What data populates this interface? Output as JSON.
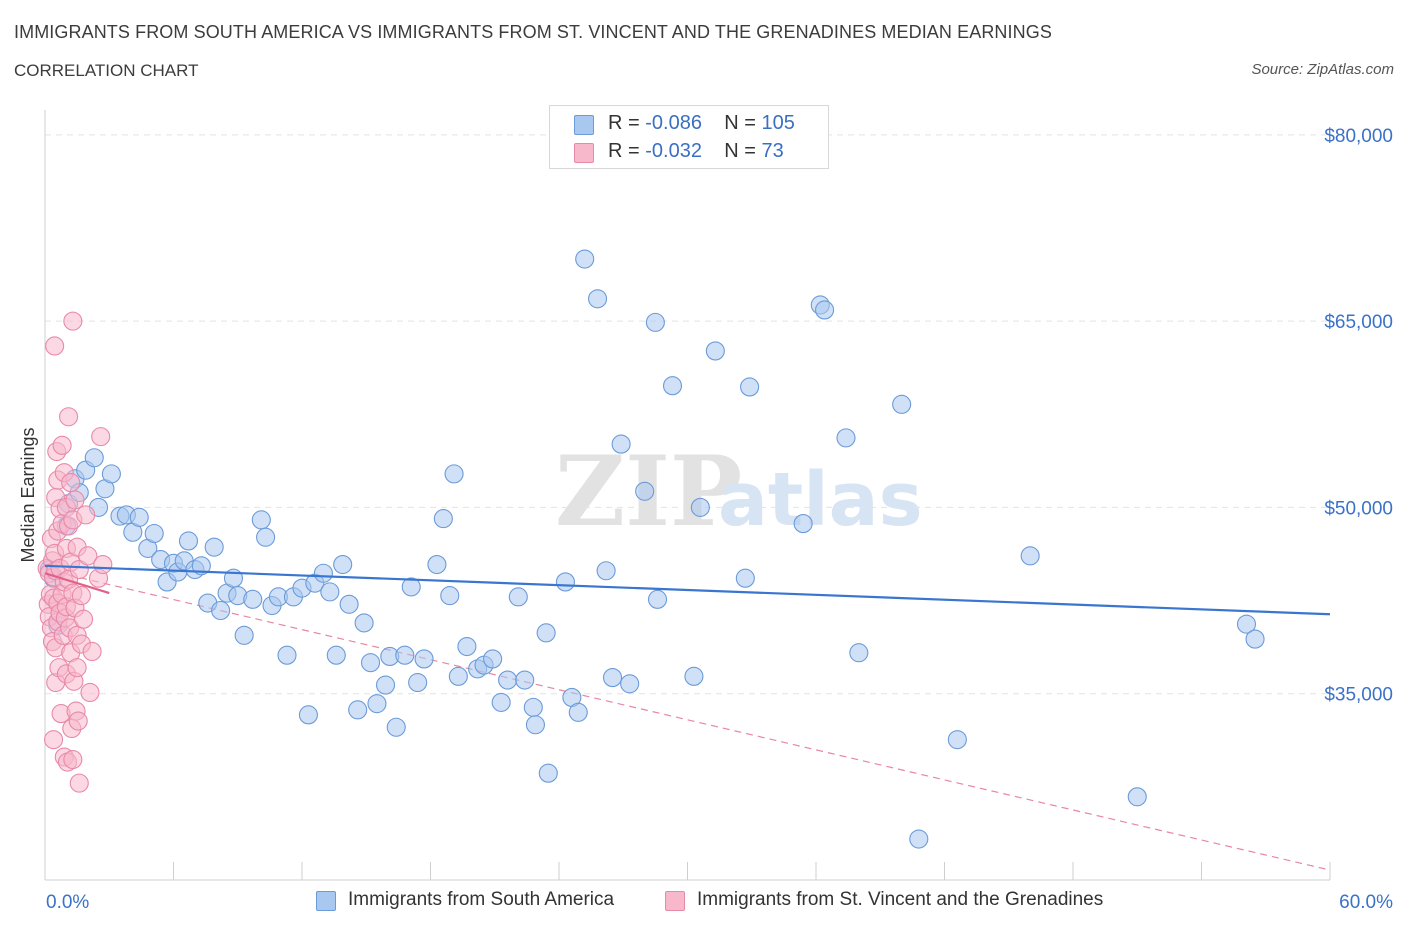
{
  "header": {
    "title": "IMMIGRANTS FROM SOUTH AMERICA VS IMMIGRANTS FROM ST. VINCENT AND THE GRENADINES MEDIAN EARNINGS",
    "subtitle": "CORRELATION CHART",
    "source": "Source: ZipAtlas.com"
  },
  "legend": {
    "rows": [
      {
        "r_label": "R = ",
        "r_value": "-0.086",
        "n_label": "N = ",
        "n_value": "105",
        "color": "#a9c8f0"
      },
      {
        "r_label": "R = ",
        "r_value": "-0.032",
        "n_label": "N = ",
        "n_value": "73",
        "color": "#f7b8cc"
      }
    ]
  },
  "watermark": {
    "zip": "ZIP",
    "atlas": "atlas"
  },
  "chart_data": {
    "type": "scatter",
    "ylabel": "Median Earnings",
    "xlabel": "",
    "xlim": [
      0,
      60
    ],
    "ylim": [
      20000,
      82000
    ],
    "x_tick_labels": [
      "0.0%",
      "60.0%"
    ],
    "y_ticks": [
      {
        "value": 35000,
        "label": "$35,000"
      },
      {
        "value": 50000,
        "label": "$50,000"
      },
      {
        "value": 65000,
        "label": "$65,000"
      },
      {
        "value": 80000,
        "label": "$80,000"
      }
    ],
    "grid": true,
    "series": [
      {
        "name": "Immigrants from South America",
        "color": "#a9c8f0",
        "stroke": "#6b9bd8",
        "trend": {
          "x": [
            0,
            60
          ],
          "y": [
            45300,
            41400
          ],
          "color": "#3a76d0",
          "style": "solid"
        },
        "points": [
          [
            0.2,
            45000
          ],
          [
            0.4,
            44300
          ],
          [
            0.6,
            40500
          ],
          [
            1.0,
            48500
          ],
          [
            1.1,
            50300
          ],
          [
            1.4,
            52300
          ],
          [
            1.6,
            51200
          ],
          [
            1.9,
            53000
          ],
          [
            2.3,
            54000
          ],
          [
            2.5,
            50000
          ],
          [
            2.8,
            51500
          ],
          [
            3.1,
            52700
          ],
          [
            3.5,
            49300
          ],
          [
            3.8,
            49400
          ],
          [
            4.1,
            48000
          ],
          [
            4.4,
            49200
          ],
          [
            4.8,
            46700
          ],
          [
            5.1,
            47900
          ],
          [
            5.4,
            45800
          ],
          [
            5.7,
            44000
          ],
          [
            6.0,
            45500
          ],
          [
            6.2,
            44800
          ],
          [
            6.5,
            45700
          ],
          [
            6.7,
            47300
          ],
          [
            7.0,
            45000
          ],
          [
            7.3,
            45300
          ],
          [
            7.6,
            42300
          ],
          [
            7.9,
            46800
          ],
          [
            8.2,
            41700
          ],
          [
            8.5,
            43100
          ],
          [
            8.8,
            44300
          ],
          [
            9.0,
            42900
          ],
          [
            9.3,
            39700
          ],
          [
            9.7,
            42600
          ],
          [
            10.1,
            49000
          ],
          [
            10.3,
            47600
          ],
          [
            10.6,
            42100
          ],
          [
            10.9,
            42800
          ],
          [
            11.3,
            38100
          ],
          [
            11.6,
            42800
          ],
          [
            12.0,
            43500
          ],
          [
            12.3,
            33300
          ],
          [
            12.6,
            43900
          ],
          [
            13.0,
            44700
          ],
          [
            13.3,
            43200
          ],
          [
            13.6,
            38100
          ],
          [
            13.9,
            45400
          ],
          [
            14.2,
            42200
          ],
          [
            14.6,
            33700
          ],
          [
            14.9,
            40700
          ],
          [
            15.2,
            37500
          ],
          [
            15.5,
            34200
          ],
          [
            15.9,
            35700
          ],
          [
            16.1,
            38000
          ],
          [
            16.4,
            32300
          ],
          [
            16.8,
            38100
          ],
          [
            17.1,
            43600
          ],
          [
            17.4,
            35900
          ],
          [
            17.7,
            37800
          ],
          [
            18.3,
            45400
          ],
          [
            18.6,
            49100
          ],
          [
            18.9,
            42900
          ],
          [
            19.1,
            52700
          ],
          [
            19.3,
            36400
          ],
          [
            19.7,
            38800
          ],
          [
            20.2,
            37000
          ],
          [
            20.5,
            37300
          ],
          [
            20.9,
            37800
          ],
          [
            21.3,
            34300
          ],
          [
            21.6,
            36100
          ],
          [
            22.1,
            42800
          ],
          [
            22.4,
            36100
          ],
          [
            22.8,
            33900
          ],
          [
            22.9,
            32500
          ],
          [
            23.4,
            39900
          ],
          [
            23.5,
            28600
          ],
          [
            24.3,
            44000
          ],
          [
            24.6,
            34700
          ],
          [
            24.9,
            33500
          ],
          [
            25.2,
            70000
          ],
          [
            25.8,
            66800
          ],
          [
            26.2,
            44900
          ],
          [
            26.5,
            36300
          ],
          [
            26.9,
            55100
          ],
          [
            27.3,
            35800
          ],
          [
            28.0,
            51300
          ],
          [
            28.5,
            64900
          ],
          [
            28.6,
            42600
          ],
          [
            29.3,
            59800
          ],
          [
            30.3,
            36400
          ],
          [
            30.6,
            50000
          ],
          [
            31.3,
            62600
          ],
          [
            32.7,
            44300
          ],
          [
            32.9,
            59700
          ],
          [
            35.4,
            48700
          ],
          [
            36.2,
            66300
          ],
          [
            36.4,
            65900
          ],
          [
            37.4,
            55600
          ],
          [
            38.0,
            38300
          ],
          [
            40.0,
            58300
          ],
          [
            40.8,
            23300
          ],
          [
            42.6,
            31300
          ],
          [
            46.0,
            46100
          ],
          [
            51.0,
            26700
          ],
          [
            56.1,
            40600
          ],
          [
            56.5,
            39400
          ]
        ]
      },
      {
        "name": "Immigrants from St. Vincent and the Grenadines",
        "color": "#f7b8cc",
        "stroke": "#e889a8",
        "trend": {
          "x": [
            0,
            3
          ],
          "y": [
            44700,
            43100
          ],
          "color": "#e0608a",
          "style": "solid"
        },
        "trend_extended": {
          "x": [
            0,
            60
          ],
          "y": [
            45000,
            20800
          ],
          "color": "#e8879f",
          "style": "dashed"
        },
        "points": [
          [
            0.1,
            45100
          ],
          [
            0.15,
            42200
          ],
          [
            0.2,
            44700
          ],
          [
            0.2,
            41200
          ],
          [
            0.25,
            43000
          ],
          [
            0.3,
            47500
          ],
          [
            0.3,
            40300
          ],
          [
            0.35,
            45700
          ],
          [
            0.35,
            39200
          ],
          [
            0.4,
            44400
          ],
          [
            0.4,
            42700
          ],
          [
            0.4,
            31300
          ],
          [
            0.45,
            63000
          ],
          [
            0.45,
            46300
          ],
          [
            0.5,
            50800
          ],
          [
            0.5,
            44900
          ],
          [
            0.5,
            38700
          ],
          [
            0.5,
            35900
          ],
          [
            0.55,
            54500
          ],
          [
            0.6,
            52200
          ],
          [
            0.6,
            48100
          ],
          [
            0.6,
            42300
          ],
          [
            0.6,
            40800
          ],
          [
            0.65,
            37100
          ],
          [
            0.7,
            49900
          ],
          [
            0.7,
            45100
          ],
          [
            0.7,
            41500
          ],
          [
            0.75,
            33400
          ],
          [
            0.8,
            55000
          ],
          [
            0.8,
            48700
          ],
          [
            0.8,
            43000
          ],
          [
            0.85,
            39700
          ],
          [
            0.9,
            52800
          ],
          [
            0.9,
            44000
          ],
          [
            0.9,
            29900
          ],
          [
            0.95,
            41100
          ],
          [
            1.0,
            50000
          ],
          [
            1.0,
            46700
          ],
          [
            1.0,
            42000
          ],
          [
            1.0,
            36600
          ],
          [
            1.05,
            29500
          ],
          [
            1.1,
            57300
          ],
          [
            1.1,
            48500
          ],
          [
            1.1,
            44200
          ],
          [
            1.15,
            40300
          ],
          [
            1.2,
            52000
          ],
          [
            1.2,
            45600
          ],
          [
            1.2,
            38300
          ],
          [
            1.25,
            32200
          ],
          [
            1.3,
            65000
          ],
          [
            1.3,
            49000
          ],
          [
            1.3,
            43100
          ],
          [
            1.3,
            29700
          ],
          [
            1.35,
            36000
          ],
          [
            1.4,
            50600
          ],
          [
            1.4,
            41900
          ],
          [
            1.45,
            33600
          ],
          [
            1.5,
            46800
          ],
          [
            1.5,
            39700
          ],
          [
            1.5,
            37100
          ],
          [
            1.55,
            32800
          ],
          [
            1.6,
            27800
          ],
          [
            1.6,
            45000
          ],
          [
            1.7,
            39000
          ],
          [
            1.7,
            42900
          ],
          [
            1.8,
            41000
          ],
          [
            1.9,
            49400
          ],
          [
            2.0,
            46100
          ],
          [
            2.1,
            35100
          ],
          [
            2.2,
            38400
          ],
          [
            2.5,
            44300
          ],
          [
            2.6,
            55700
          ],
          [
            2.7,
            45400
          ]
        ]
      }
    ]
  }
}
